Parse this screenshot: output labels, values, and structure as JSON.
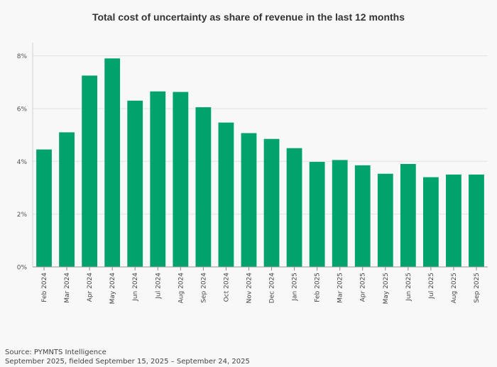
{
  "chart_data": {
    "type": "bar",
    "title": "Total cost of uncertainty as share of revenue in the last 12 months",
    "xlabel": "",
    "ylabel": "",
    "ylim": [
      0,
      8.5
    ],
    "yticks": [
      0,
      2,
      4,
      6,
      8
    ],
    "ytick_labels": [
      "0%",
      "2%",
      "4%",
      "6%",
      "8%"
    ],
    "grid": true,
    "bar_color": "#00a36c",
    "categories": [
      "Feb 2024",
      "Mar 2024",
      "Apr 2024",
      "May 2024",
      "Jun 2024",
      "Jul 2024",
      "Aug 2024",
      "Sep 2024",
      "Oct 2024",
      "Nov 2024",
      "Dec 2024",
      "Jan 2025",
      "Feb 2025",
      "Mar 2025",
      "Apr 2025",
      "May 2025",
      "Jun 2025",
      "Jul 2025",
      "Aug 2025",
      "Sep 2025"
    ],
    "values": [
      4.45,
      5.1,
      7.25,
      7.9,
      6.3,
      6.65,
      6.63,
      6.05,
      5.47,
      5.07,
      4.85,
      4.5,
      3.98,
      4.05,
      3.85,
      3.53,
      3.9,
      3.4,
      3.5,
      3.5
    ]
  },
  "footer": {
    "source": "Source: PYMNTS Intelligence",
    "note": "September 2025, fielded September 15, 2025 – September 24, 2025"
  }
}
